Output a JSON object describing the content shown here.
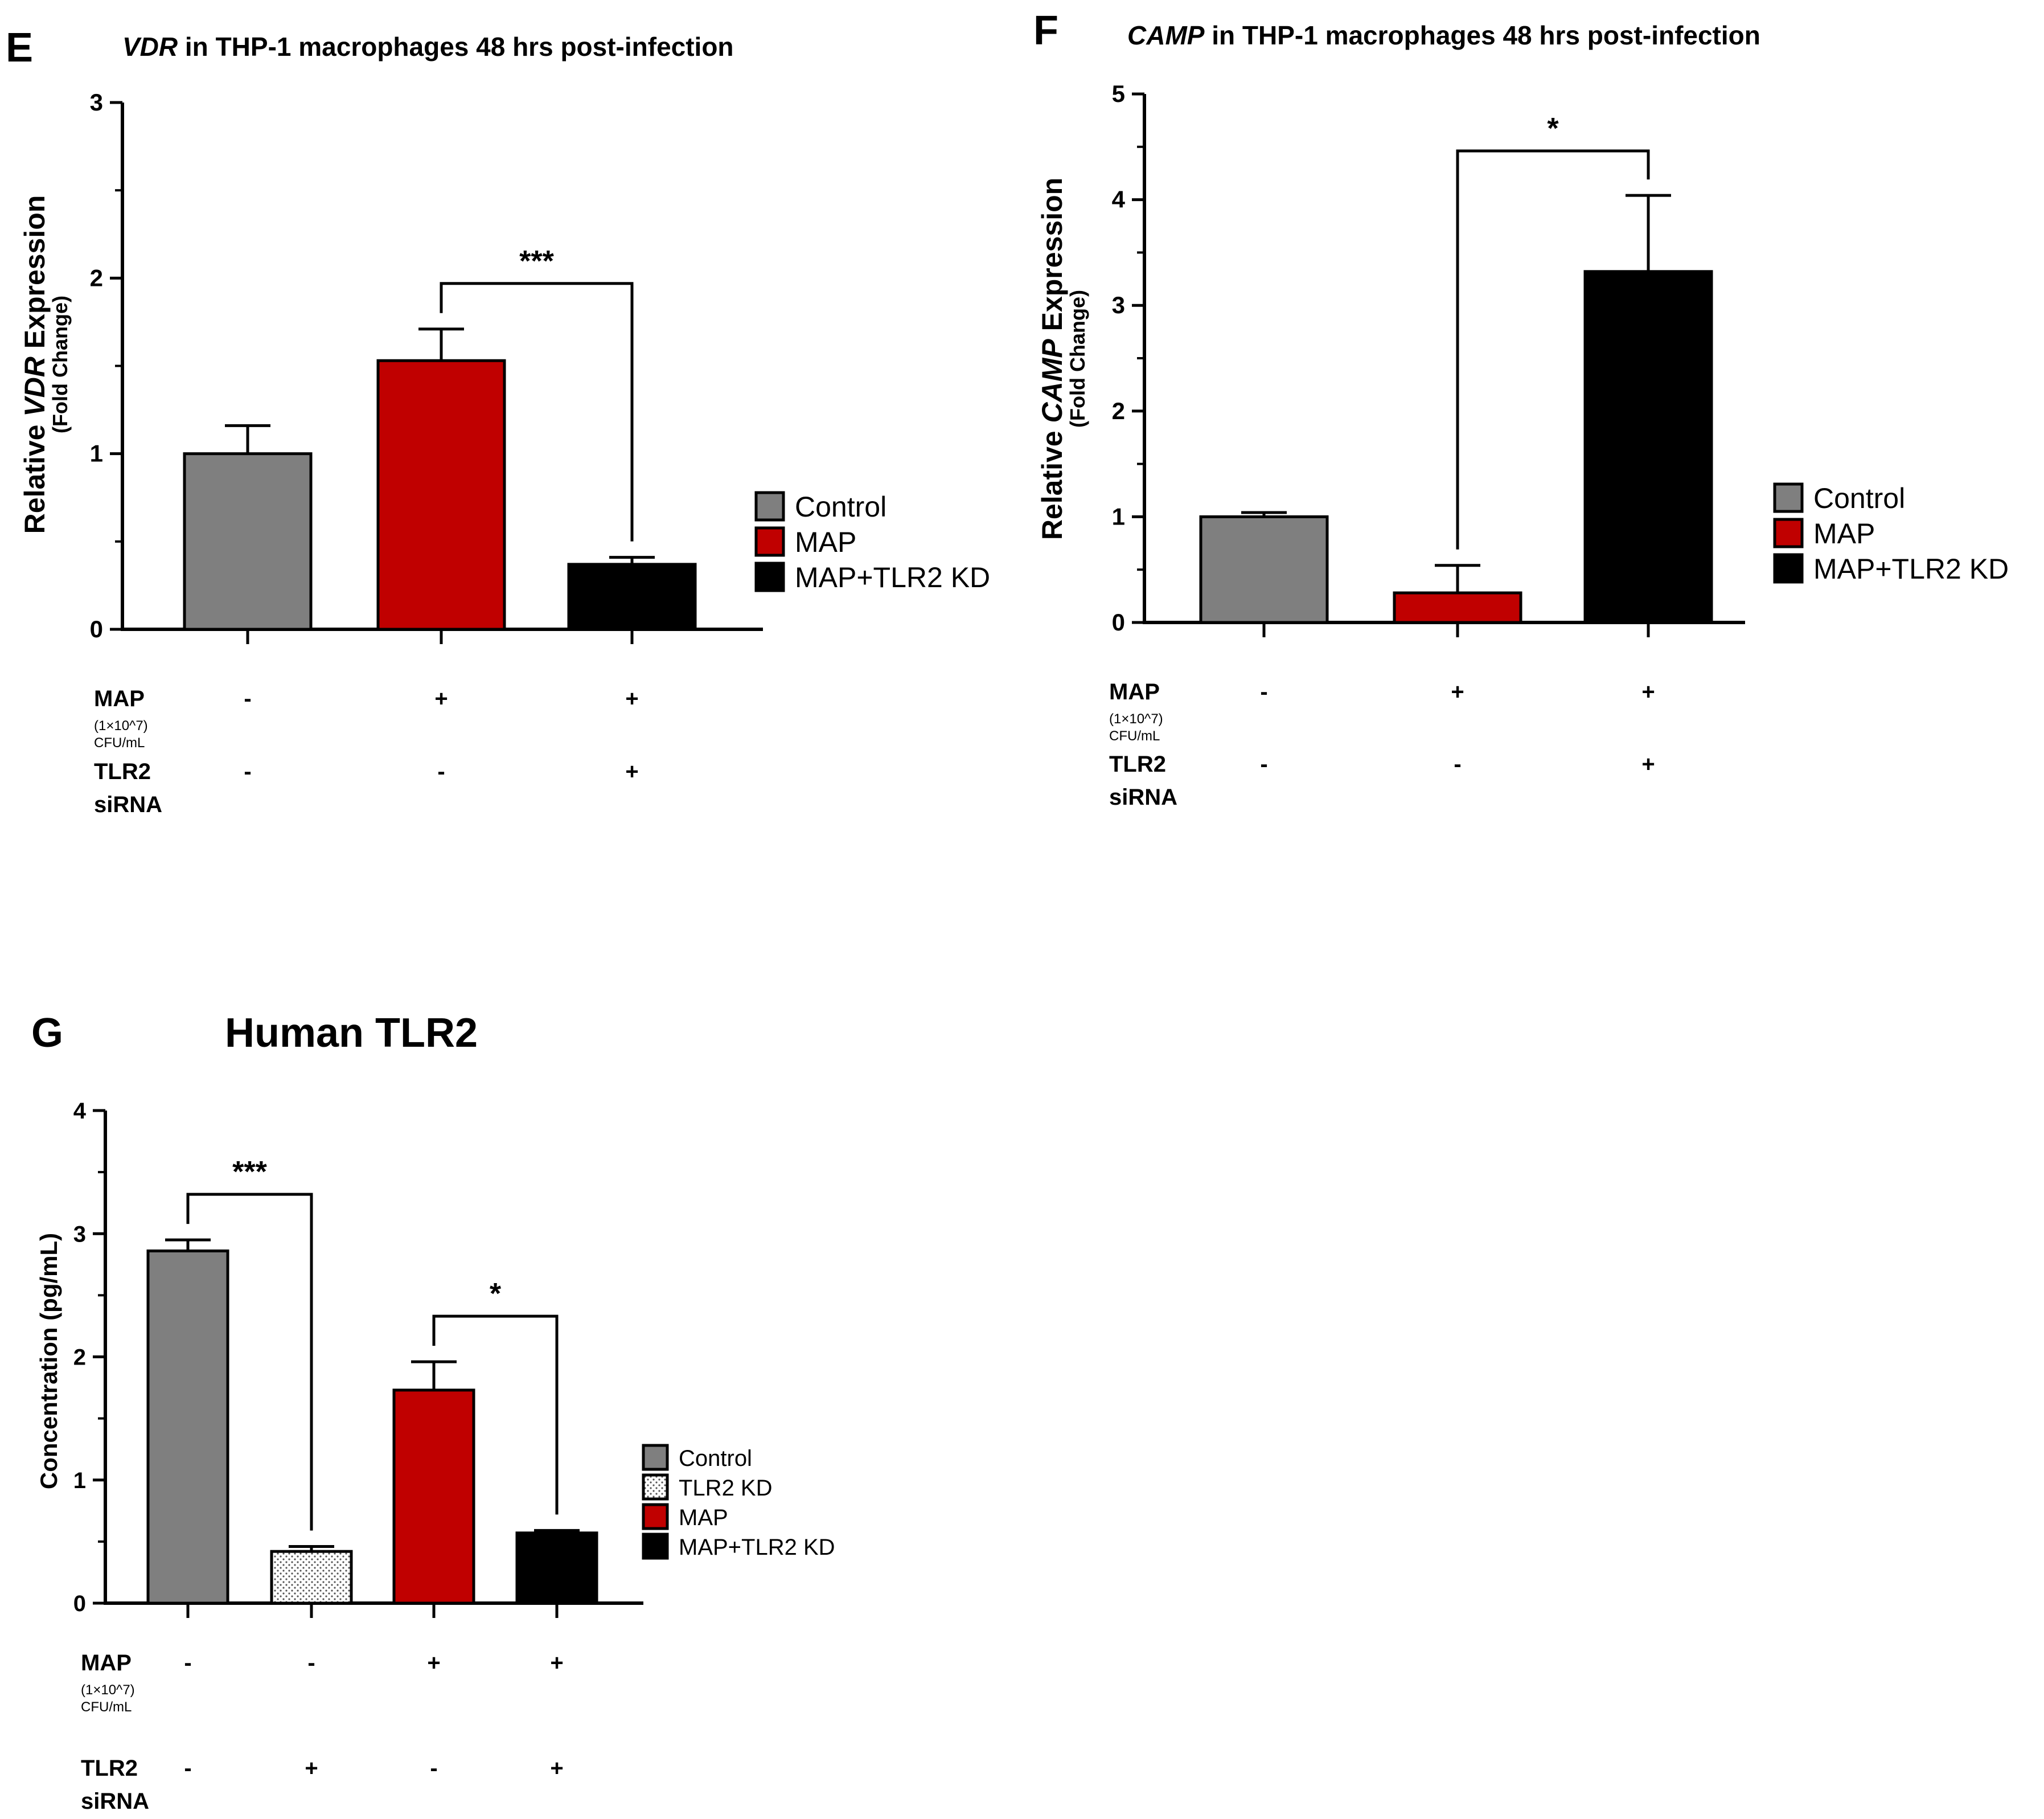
{
  "colors": {
    "control": "#7f7f7f",
    "map": "#c00000",
    "map_tlr2_kd": "#000000",
    "tlr2_kd_fill": "#ffffff",
    "tlr2_kd_dot": "#555555"
  },
  "chart_data": [
    {
      "panel": "E",
      "type": "bar",
      "title_italic": "VDR",
      "title_rest": " in THP-1 macrophages 48 hrs post-infection",
      "ylabel_pre": "Relative ",
      "ylabel_italic": "VDR",
      "ylabel_post": " Expression",
      "ylabel_sub": "(Fold Change)",
      "ylim": [
        0,
        3
      ],
      "yticks": [
        "0",
        "1",
        "2",
        "3"
      ],
      "categories": [
        "Control",
        "MAP",
        "MAP+TLR2 KD"
      ],
      "values": [
        1.0,
        1.53,
        0.37
      ],
      "errors": [
        0.16,
        0.18,
        0.04
      ],
      "legend": [
        "Control",
        "MAP",
        "MAP+TLR2 KD"
      ],
      "significance": [
        {
          "from": 1,
          "to": 2,
          "label": "***"
        }
      ],
      "condition_rows": [
        {
          "label": "MAP",
          "sublabel1": "(1×10^7)",
          "sublabel2": "CFU/mL",
          "signs": [
            "-",
            "+",
            "+"
          ]
        },
        {
          "label": "TLR2",
          "sublabel1": "siRNA",
          "signs": [
            "-",
            "-",
            "+"
          ]
        }
      ]
    },
    {
      "panel": "F",
      "type": "bar",
      "title_italic": "CAMP",
      "title_rest": " in THP-1 macrophages 48 hrs post-infection",
      "ylabel_pre": "Relative ",
      "ylabel_italic": "CAMP",
      "ylabel_post": " Expression",
      "ylabel_sub": "(Fold Change)",
      "ylim": [
        0,
        5
      ],
      "yticks": [
        "0",
        "1",
        "2",
        "3",
        "4",
        "5"
      ],
      "categories": [
        "Control",
        "MAP",
        "MAP+TLR2 KD"
      ],
      "values": [
        1.0,
        0.28,
        3.32
      ],
      "errors": [
        0.04,
        0.26,
        0.72
      ],
      "legend": [
        "Control",
        "MAP",
        "MAP+TLR2 KD"
      ],
      "significance": [
        {
          "from": 1,
          "to": 2,
          "label": "*"
        }
      ],
      "condition_rows": [
        {
          "label": "MAP",
          "sublabel1": "(1×10^7)",
          "sublabel2": "CFU/mL",
          "signs": [
            "-",
            "+",
            "+"
          ]
        },
        {
          "label": "TLR2",
          "sublabel1": "siRNA",
          "signs": [
            "-",
            "-",
            "+"
          ]
        }
      ]
    },
    {
      "panel": "G",
      "type": "bar",
      "title": "Human TLR2",
      "ylabel": "Concentration (pg/mL)",
      "ylim": [
        0,
        4
      ],
      "yticks": [
        "0",
        "1",
        "2",
        "3",
        "4"
      ],
      "categories": [
        "Control",
        "TLR2 KD",
        "MAP",
        "MAP+TLR2 KD"
      ],
      "values": [
        2.86,
        0.42,
        1.73,
        0.57
      ],
      "errors": [
        0.09,
        0.04,
        0.23,
        0.02
      ],
      "legend": [
        "Control",
        "TLR2 KD",
        "MAP",
        "MAP+TLR2 KD"
      ],
      "significance": [
        {
          "from": 0,
          "to": 1,
          "label": "***"
        },
        {
          "from": 2,
          "to": 3,
          "label": "*"
        }
      ],
      "condition_rows": [
        {
          "label": "MAP",
          "sublabel1": "(1×10^7)",
          "sublabel2": "CFU/mL",
          "signs": [
            "-",
            "-",
            "+",
            "+"
          ]
        },
        {
          "label": "TLR2",
          "sublabel1": "siRNA",
          "signs": [
            "-",
            "+",
            "-",
            "+"
          ]
        }
      ]
    }
  ]
}
